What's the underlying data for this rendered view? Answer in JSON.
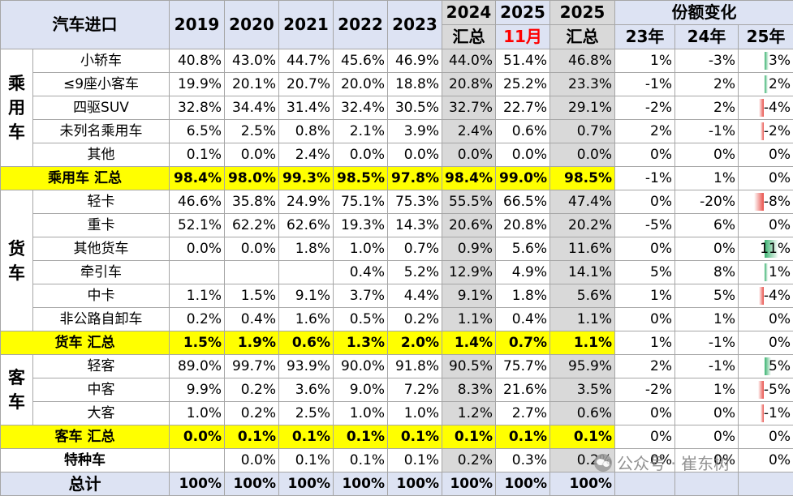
{
  "header": {
    "title": "汽车进口",
    "years": [
      "2019",
      "2020",
      "2021",
      "2022",
      "2023"
    ],
    "y2024": [
      "2024",
      "汇总"
    ],
    "y2025m": [
      "2025",
      "11月"
    ],
    "y2025s": [
      "2025",
      "汇总"
    ],
    "share": "份额变化",
    "chg": [
      "23年",
      "24年",
      "25年"
    ]
  },
  "groups": {
    "passenger": "乘用车",
    "truck": "货车",
    "bus": "客车"
  },
  "rows": {
    "p1": {
      "name": "小轿车",
      "v": [
        "40.8%",
        "43.0%",
        "44.7%",
        "45.6%",
        "46.9%",
        "44.0%",
        "51.4%",
        "46.8%"
      ],
      "c": [
        "1%",
        "-3%",
        "3%"
      ],
      "c25": 3
    },
    "p2": {
      "name": "≤9座小客车",
      "v": [
        "19.9%",
        "20.1%",
        "20.7%",
        "20.0%",
        "18.8%",
        "20.8%",
        "25.2%",
        "23.3%"
      ],
      "c": [
        "-1%",
        "2%",
        "2%"
      ],
      "c25": 2
    },
    "p3": {
      "name": "四驱SUV",
      "v": [
        "32.8%",
        "34.4%",
        "31.4%",
        "32.4%",
        "30.5%",
        "32.7%",
        "22.7%",
        "29.1%"
      ],
      "c": [
        "-2%",
        "2%",
        "-4%"
      ],
      "c25": -4
    },
    "p4": {
      "name": "未列名乘用车",
      "v": [
        "6.5%",
        "2.5%",
        "0.8%",
        "2.1%",
        "3.9%",
        "2.4%",
        "0.6%",
        "0.7%"
      ],
      "c": [
        "2%",
        "-1%",
        "-2%"
      ],
      "c25": -2
    },
    "p5": {
      "name": "其他",
      "v": [
        "0.1%",
        "0.0%",
        "2.4%",
        "0.0%",
        "0.0%",
        "0.0%",
        "0.0%",
        "0.0%"
      ],
      "c": [
        "0%",
        "0%",
        "0%"
      ],
      "c25": 0
    },
    "ps": {
      "name": "乘用车 汇总",
      "v": [
        "98.4%",
        "98.0%",
        "99.3%",
        "98.5%",
        "97.8%",
        "98.4%",
        "99.0%",
        "98.5%"
      ],
      "c": [
        "-1%",
        "1%",
        "0%"
      ],
      "c25": 0
    },
    "t1": {
      "name": "轻卡",
      "v": [
        "46.6%",
        "35.8%",
        "24.9%",
        "75.1%",
        "75.3%",
        "55.5%",
        "66.5%",
        "47.4%"
      ],
      "c": [
        "0%",
        "-20%",
        "-8%"
      ],
      "c25": -8
    },
    "t2": {
      "name": "重卡",
      "v": [
        "52.1%",
        "62.2%",
        "62.6%",
        "19.3%",
        "14.3%",
        "20.6%",
        "20.8%",
        "20.2%"
      ],
      "c": [
        "-5%",
        "6%",
        "0%"
      ],
      "c25": 0
    },
    "t3": {
      "name": "其他货车",
      "v": [
        "0.0%",
        "0.0%",
        "1.8%",
        "1.0%",
        "0.7%",
        "0.9%",
        "5.6%",
        "11.6%"
      ],
      "c": [
        "0%",
        "0%",
        "11%"
      ],
      "c25": 11
    },
    "t4": {
      "name": "牵引车",
      "v": [
        "",
        "",
        "",
        "0.4%",
        "5.2%",
        "12.9%",
        "4.9%",
        "14.1%"
      ],
      "c": [
        "5%",
        "8%",
        "1%"
      ],
      "c25": 1
    },
    "t5": {
      "name": "中卡",
      "v": [
        "1.1%",
        "1.5%",
        "9.1%",
        "3.7%",
        "4.4%",
        "9.1%",
        "1.8%",
        "5.6%"
      ],
      "c": [
        "1%",
        "5%",
        "-4%"
      ],
      "c25": -4
    },
    "t6": {
      "name": "非公路自卸车",
      "v": [
        "0.2%",
        "0.4%",
        "1.6%",
        "0.5%",
        "0.2%",
        "1.1%",
        "0.4%",
        "1.1%"
      ],
      "c": [
        "0%",
        "1%",
        "0%"
      ],
      "c25": 0
    },
    "ts": {
      "name": "货车 汇总",
      "v": [
        "1.5%",
        "1.9%",
        "0.6%",
        "1.3%",
        "2.0%",
        "1.4%",
        "0.7%",
        "1.1%"
      ],
      "c": [
        "1%",
        "-1%",
        "0%"
      ],
      "c25": 0
    },
    "b1": {
      "name": "轻客",
      "v": [
        "89.0%",
        "99.7%",
        "93.9%",
        "90.0%",
        "91.8%",
        "90.5%",
        "75.7%",
        "95.9%"
      ],
      "c": [
        "2%",
        "-1%",
        "5%"
      ],
      "c25": 5
    },
    "b2": {
      "name": "中客",
      "v": [
        "9.9%",
        "0.2%",
        "3.6%",
        "9.0%",
        "7.2%",
        "8.3%",
        "21.6%",
        "3.5%"
      ],
      "c": [
        "-2%",
        "1%",
        "-5%"
      ],
      "c25": -5
    },
    "b3": {
      "name": "大客",
      "v": [
        "1.0%",
        "0.2%",
        "2.5%",
        "1.0%",
        "1.0%",
        "1.2%",
        "2.7%",
        "0.6%"
      ],
      "c": [
        "0%",
        "0%",
        "-1%"
      ],
      "c25": -1
    },
    "bs": {
      "name": "客车 汇总",
      "v": [
        "0.0%",
        "0.1%",
        "0.1%",
        "0.1%",
        "0.1%",
        "0.1%",
        "0.1%",
        "0.1%"
      ],
      "c": [
        "0%",
        "0%",
        "0%"
      ],
      "c25": 0
    },
    "sp": {
      "name": "特种车",
      "v": [
        "",
        "0.0%",
        "0.1%",
        "0.1%",
        "0.1%",
        "0.2%",
        "0.3%",
        "0.2%"
      ],
      "c": [
        "0%",
        "0%",
        "0%"
      ],
      "c25": 0
    },
    "tot": {
      "name": "总计",
      "v": [
        "100%",
        "100%",
        "100%",
        "100%",
        "100%",
        "100%",
        "100%",
        "100%"
      ],
      "c": [
        "",
        "",
        ""
      ],
      "c25": 0
    }
  },
  "colors": {
    "header_bg": "#dde3f3",
    "summary_bg": "#ffff00",
    "highlight_col": "#d9d9d9",
    "month_text": "#ff0000",
    "bar_neg": "#e8504a",
    "bar_pos": "#3cb371"
  },
  "watermark": {
    "icon": "wechat-icon",
    "text": "公众号 · 崔东树"
  }
}
